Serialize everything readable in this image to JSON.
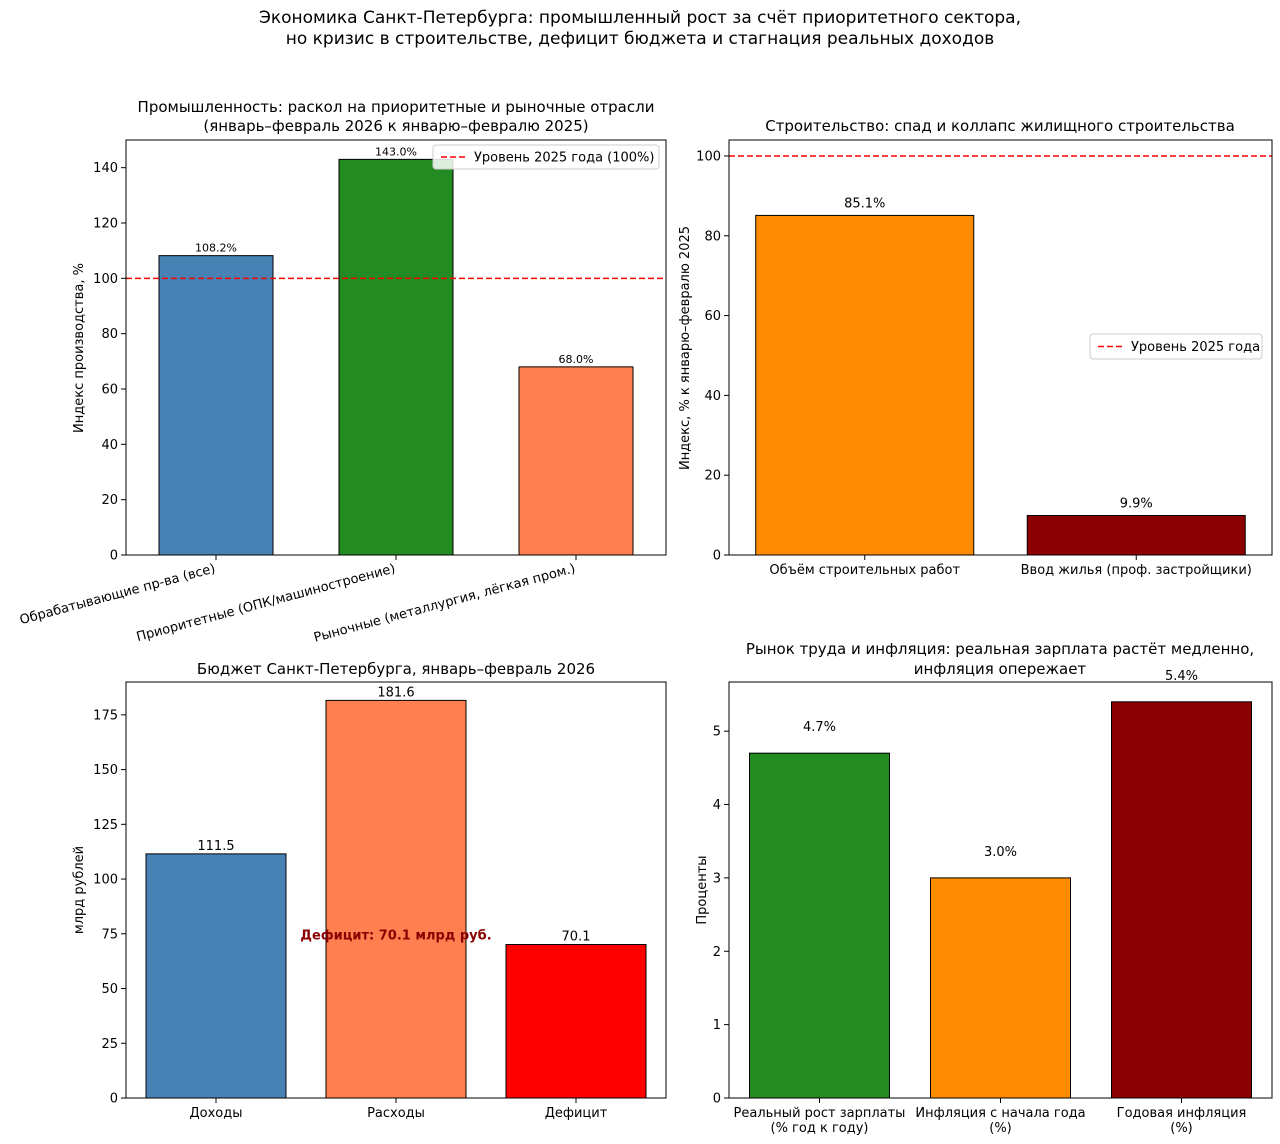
{
  "suptitle": {
    "line1": "Экономика Санкт-Петербурга: промышленный рост за счёт приоритетного сектора,",
    "line2": "но кризис в строительстве, дефицит бюджета и стагнация реальных доходов"
  },
  "colors": {
    "steelblue": "#4682B4",
    "forestgreen": "#228B22",
    "coral": "#FF7F50",
    "darkorange": "#FF8C00",
    "darkred": "#8B0000",
    "red": "#FF0000",
    "refline": "#FF0000"
  },
  "chart_data": [
    {
      "type": "bar",
      "title": [
        "Промышленность: раскол на приоритетные и рыночные отрасли",
        "(январь–февраль 2026 к январю–февралю 2025)"
      ],
      "categories": [
        "Обрабатывающие пр-ва (все)",
        "Приоритетные (ОПК/машиностроение)",
        "Рыночные (металлургия, лёгкая пром.)"
      ],
      "values": [
        108.2,
        143.0,
        68.0
      ],
      "value_labels": [
        "108.2%",
        "143.0%",
        "68.0%"
      ],
      "bar_colors": [
        "steelblue",
        "forestgreen",
        "coral"
      ],
      "ylabel": "Индекс производства, %",
      "xlabel": "",
      "ylim": [
        0,
        150
      ],
      "yticks": [
        0,
        20,
        40,
        60,
        80,
        100,
        120,
        140
      ],
      "hline": {
        "value": 100,
        "label": "Уровень 2025 года (100%)"
      },
      "legend": "top-right",
      "rotate_xticks": true
    },
    {
      "type": "bar",
      "title": [
        "Строительство: спад и коллапс жилищного строительства"
      ],
      "categories": [
        "Объём строительных работ",
        "Ввод жилья (проф. застройщики)"
      ],
      "values": [
        85.1,
        9.9
      ],
      "value_labels": [
        "85.1%",
        "9.9%"
      ],
      "bar_colors": [
        "darkorange",
        "darkred"
      ],
      "ylabel": "Индекс, % к январю–февралю 2025",
      "xlabel": "",
      "ylim": [
        0,
        104
      ],
      "yticks": [
        0,
        20,
        40,
        60,
        80,
        100
      ],
      "hline": {
        "value": 100,
        "label": "Уровень 2025 года"
      },
      "legend": "center-right"
    },
    {
      "type": "bar",
      "title": [
        "Бюджет Санкт-Петербурга, январь–февраль 2026"
      ],
      "categories": [
        "Доходы",
        "Расходы",
        "Дефицит"
      ],
      "values": [
        111.5,
        181.6,
        70.1
      ],
      "value_labels": [
        "111.5",
        "181.6",
        "70.1"
      ],
      "bar_colors": [
        "steelblue",
        "coral",
        "red"
      ],
      "ylabel": "млрд рублей",
      "xlabel": "",
      "ylim": [
        0,
        190
      ],
      "yticks": [
        0,
        25,
        50,
        75,
        100,
        125,
        150,
        175
      ],
      "annotation": {
        "text": "Дефицит: 70.1 млрд руб.",
        "x": 1,
        "y": 70.1
      }
    },
    {
      "type": "bar",
      "title": [
        "Рынок труда и инфляция: реальная зарплата растёт медленно,",
        "инфляция опережает"
      ],
      "categories": [
        [
          "Реальный рост зарплаты",
          "(% год к году)"
        ],
        [
          "Инфляция с начала года",
          "(%)"
        ],
        [
          "Годовая инфляция",
          "(%)"
        ]
      ],
      "values": [
        4.7,
        3.0,
        5.4
      ],
      "value_labels": [
        "4.7%",
        "3.0%",
        "5.4%"
      ],
      "bar_colors": [
        "forestgreen",
        "darkorange",
        "darkred"
      ],
      "ylabel": "Проценты",
      "xlabel": "",
      "ylim": [
        0,
        5.67
      ],
      "yticks": [
        0,
        1,
        2,
        3,
        4,
        5
      ]
    }
  ]
}
